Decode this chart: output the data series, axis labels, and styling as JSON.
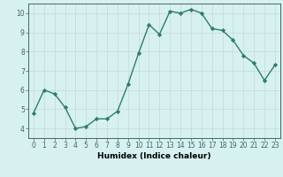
{
  "x": [
    0,
    1,
    2,
    3,
    4,
    5,
    6,
    7,
    8,
    9,
    10,
    11,
    12,
    13,
    14,
    15,
    16,
    17,
    18,
    19,
    20,
    21,
    22,
    23
  ],
  "y": [
    4.8,
    6.0,
    5.8,
    5.1,
    4.0,
    4.1,
    4.5,
    4.5,
    4.9,
    6.3,
    7.9,
    9.4,
    8.9,
    10.1,
    10.0,
    10.2,
    10.0,
    9.2,
    9.1,
    8.6,
    7.8,
    7.4,
    6.5,
    7.3
  ],
  "xlabel": "Humidex (Indice chaleur)",
  "ylim": [
    3.5,
    10.5
  ],
  "xlim": [
    -0.5,
    23.5
  ],
  "yticks": [
    4,
    5,
    6,
    7,
    8,
    9,
    10
  ],
  "xticks": [
    0,
    1,
    2,
    3,
    4,
    5,
    6,
    7,
    8,
    9,
    10,
    11,
    12,
    13,
    14,
    15,
    16,
    17,
    18,
    19,
    20,
    21,
    22,
    23
  ],
  "line_color": "#2e7d6e",
  "bg_color": "#d7f0f0",
  "grid_color": "#c8dede",
  "marker": "D",
  "marker_size": 2.2,
  "line_width": 1.0,
  "tick_fontsize": 5.5,
  "xlabel_fontsize": 6.5
}
